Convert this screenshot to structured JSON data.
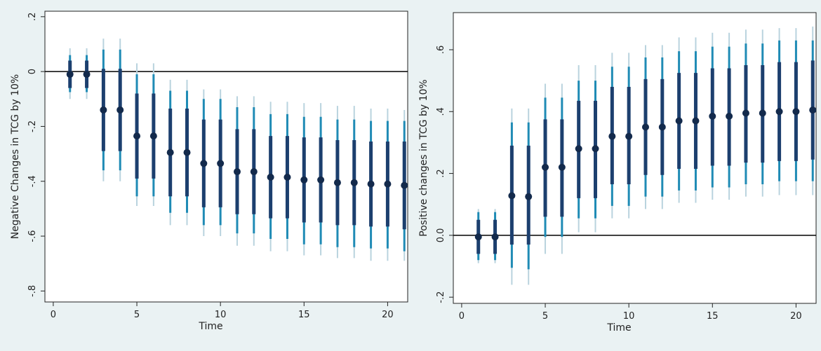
{
  "chart_data": [
    {
      "type": "irf-errorbar",
      "ylabel": "Negative Changes in TCG by 10%",
      "xlabel": "Time",
      "xlim": [
        -0.5,
        21.2
      ],
      "ylim": [
        -0.84,
        0.22
      ],
      "xticks": [
        0,
        5,
        10,
        15,
        20
      ],
      "xtick_labels": [
        "0",
        "5",
        "10",
        "15",
        "20"
      ],
      "yticks": [
        0.2,
        0,
        -0.2,
        -0.4,
        -0.6,
        -0.8
      ],
      "ytick_labels": [
        ".2",
        "0",
        "-.2",
        "-.4",
        "-.6",
        "-.8"
      ],
      "reference_line": 0,
      "x": [
        1,
        2,
        3,
        4,
        5,
        6,
        7,
        8,
        9,
        10,
        11,
        12,
        13,
        14,
        15,
        16,
        17,
        18,
        19,
        20,
        21
      ],
      "point": [
        -0.01,
        -0.01,
        -0.14,
        -0.14,
        -0.235,
        -0.235,
        -0.295,
        -0.295,
        -0.335,
        -0.335,
        -0.365,
        -0.365,
        -0.385,
        -0.385,
        -0.395,
        -0.395,
        -0.405,
        -0.405,
        -0.41,
        -0.41,
        -0.415
      ],
      "inner_low": [
        -0.06,
        -0.06,
        -0.29,
        -0.29,
        -0.39,
        -0.39,
        -0.455,
        -0.455,
        -0.495,
        -0.495,
        -0.52,
        -0.52,
        -0.535,
        -0.535,
        -0.55,
        -0.55,
        -0.56,
        -0.56,
        -0.565,
        -0.565,
        -0.575
      ],
      "inner_high": [
        0.04,
        0.04,
        0.01,
        0.01,
        -0.08,
        -0.08,
        -0.135,
        -0.135,
        -0.175,
        -0.175,
        -0.21,
        -0.21,
        -0.235,
        -0.235,
        -0.24,
        -0.24,
        -0.25,
        -0.25,
        -0.255,
        -0.255,
        -0.255
      ],
      "mid_low": [
        -0.075,
        -0.075,
        -0.36,
        -0.36,
        -0.455,
        -0.455,
        -0.515,
        -0.515,
        -0.56,
        -0.56,
        -0.59,
        -0.59,
        -0.61,
        -0.61,
        -0.63,
        -0.63,
        -0.64,
        -0.64,
        -0.645,
        -0.645,
        -0.655
      ],
      "mid_high": [
        0.06,
        0.06,
        0.08,
        0.08,
        -0.01,
        -0.01,
        -0.07,
        -0.07,
        -0.1,
        -0.1,
        -0.13,
        -0.13,
        -0.155,
        -0.155,
        -0.165,
        -0.165,
        -0.175,
        -0.175,
        -0.18,
        -0.18,
        -0.18
      ],
      "outer_low": [
        -0.1,
        -0.1,
        -0.4,
        -0.4,
        -0.49,
        -0.49,
        -0.56,
        -0.56,
        -0.6,
        -0.6,
        -0.635,
        -0.635,
        -0.655,
        -0.655,
        -0.67,
        -0.67,
        -0.68,
        -0.68,
        -0.69,
        -0.69,
        -0.69
      ],
      "outer_high": [
        0.085,
        0.085,
        0.12,
        0.12,
        0.03,
        0.03,
        -0.03,
        -0.03,
        -0.065,
        -0.065,
        -0.09,
        -0.09,
        -0.11,
        -0.11,
        -0.115,
        -0.115,
        -0.125,
        -0.125,
        -0.135,
        -0.135,
        -0.14
      ]
    },
    {
      "type": "irf-errorbar",
      "ylabel": "Positive changes in TCG by 10%",
      "xlabel": "Time",
      "xlim": [
        -0.5,
        21.2
      ],
      "ylim": [
        -0.22,
        0.72
      ],
      "xticks": [
        0,
        5,
        10,
        15,
        20
      ],
      "xtick_labels": [
        "0",
        "5",
        "10",
        "15",
        "20"
      ],
      "yticks": [
        0.6,
        0.4,
        0.2,
        0,
        -0.2
      ],
      "ytick_labels": [
        ".6",
        ".4",
        ".2",
        "0.0",
        "-.2"
      ],
      "reference_line": 0,
      "x": [
        1,
        2,
        3,
        4,
        5,
        6,
        7,
        8,
        9,
        10,
        11,
        12,
        13,
        14,
        15,
        16,
        17,
        18,
        19,
        20,
        21
      ],
      "point": [
        -0.005,
        -0.005,
        0.128,
        0.125,
        0.22,
        0.22,
        0.28,
        0.28,
        0.32,
        0.32,
        0.35,
        0.35,
        0.37,
        0.37,
        0.385,
        0.385,
        0.395,
        0.395,
        0.4,
        0.4,
        0.405
      ],
      "inner_low": [
        -0.06,
        -0.06,
        -0.03,
        -0.03,
        0.06,
        0.06,
        0.12,
        0.12,
        0.165,
        0.165,
        0.195,
        0.195,
        0.215,
        0.215,
        0.225,
        0.225,
        0.235,
        0.235,
        0.24,
        0.24,
        0.245
      ],
      "inner_high": [
        0.05,
        0.05,
        0.29,
        0.29,
        0.375,
        0.375,
        0.435,
        0.435,
        0.48,
        0.48,
        0.505,
        0.505,
        0.525,
        0.525,
        0.54,
        0.54,
        0.55,
        0.55,
        0.56,
        0.56,
        0.565
      ],
      "mid_low": [
        -0.08,
        -0.08,
        -0.105,
        -0.11,
        -0.005,
        -0.005,
        0.055,
        0.055,
        0.095,
        0.095,
        0.125,
        0.125,
        0.145,
        0.145,
        0.155,
        0.155,
        0.165,
        0.165,
        0.175,
        0.175,
        0.175
      ],
      "mid_high": [
        0.075,
        0.075,
        0.365,
        0.365,
        0.445,
        0.445,
        0.5,
        0.5,
        0.545,
        0.545,
        0.575,
        0.575,
        0.595,
        0.595,
        0.61,
        0.61,
        0.62,
        0.62,
        0.63,
        0.63,
        0.63
      ],
      "outer_low": [
        -0.09,
        -0.09,
        -0.16,
        -0.16,
        -0.06,
        -0.06,
        0.01,
        0.01,
        0.055,
        0.055,
        0.085,
        0.085,
        0.105,
        0.105,
        0.115,
        0.115,
        0.125,
        0.125,
        0.13,
        0.13,
        0.13
      ],
      "outer_high": [
        0.085,
        0.085,
        0.41,
        0.41,
        0.49,
        0.49,
        0.55,
        0.55,
        0.59,
        0.59,
        0.615,
        0.615,
        0.64,
        0.64,
        0.655,
        0.655,
        0.665,
        0.665,
        0.67,
        0.67,
        0.675
      ]
    }
  ],
  "colors": {
    "panel_bg": "#eaf2f3",
    "plot_bg": "#ffffff",
    "outer_band": "#b9d3de",
    "mid_band": "#1f8bb5",
    "inner_band": "#1c3f6e",
    "point": "#132a4c",
    "zero_line": "#000000"
  }
}
